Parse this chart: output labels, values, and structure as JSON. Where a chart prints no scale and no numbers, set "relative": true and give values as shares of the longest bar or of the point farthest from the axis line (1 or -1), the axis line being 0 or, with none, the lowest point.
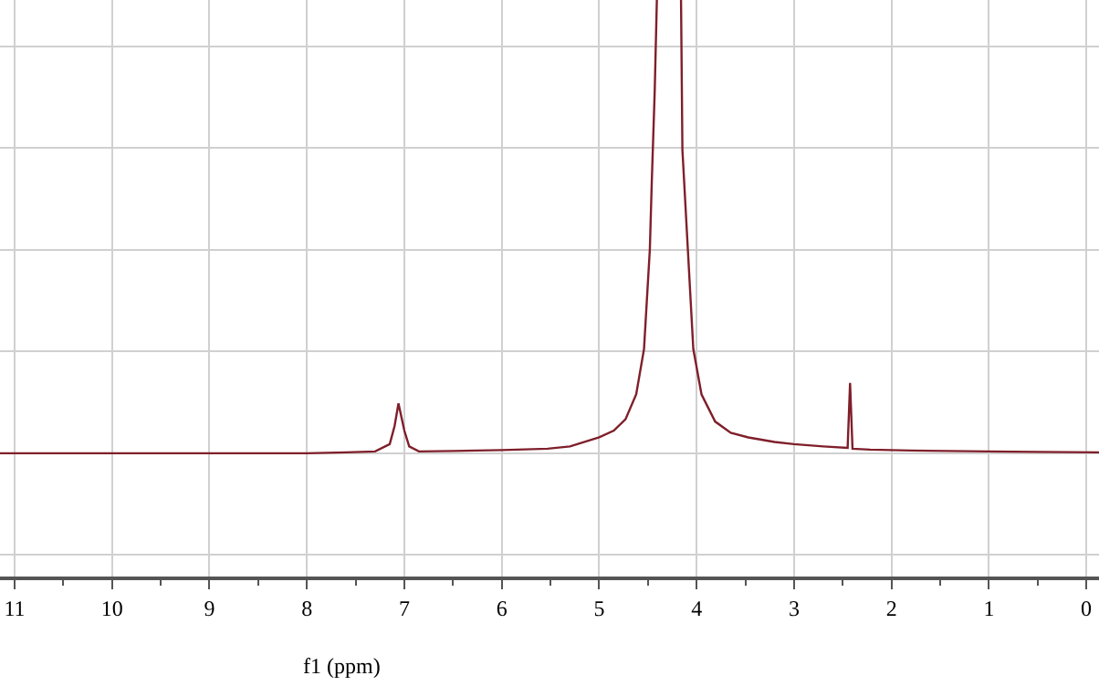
{
  "chart_data": {
    "type": "line",
    "relative": true,
    "xlabel": "f1 (ppm)",
    "xlim": [
      11.15,
      -0.13
    ],
    "xticks": [
      11,
      10,
      9,
      8,
      7,
      6,
      5,
      4,
      3,
      2,
      1,
      0
    ],
    "grid": true,
    "marker": "none",
    "line_style": "solid",
    "series": [
      {
        "color": "#7f1f2a",
        "x": [
          11.15,
          10,
          9,
          8,
          7.6,
          7.3,
          7.15,
          7.1,
          7.06,
          7.0,
          6.95,
          6.85,
          6.5,
          6.0,
          5.53,
          5.3,
          5.0,
          4.85,
          4.73,
          4.62,
          4.54,
          4.48,
          4.46,
          4.43,
          4.408,
          4.184,
          4.16,
          4.146,
          4.09,
          4.034,
          3.95,
          3.81,
          3.65,
          3.47,
          3.2,
          3.0,
          2.7,
          2.45,
          2.425,
          2.4,
          2.22,
          1.8,
          1.0,
          0.5,
          -0.13
        ],
        "values": [
          0,
          0,
          0,
          0,
          0.002,
          0.004,
          0.02,
          0.06,
          0.11,
          0.05,
          0.015,
          0.004,
          0.005,
          0.007,
          0.01,
          0.015,
          0.035,
          0.05,
          0.075,
          0.13,
          0.23,
          0.45,
          0.6,
          0.8,
          1,
          null,
          1,
          0.67,
          0.45,
          0.23,
          0.13,
          0.07,
          0.045,
          0.035,
          0.025,
          0.02,
          0.015,
          0.012,
          0.155,
          0.01,
          0.008,
          0.006,
          0.004,
          0.003,
          0.002
        ]
      }
    ]
  }
}
